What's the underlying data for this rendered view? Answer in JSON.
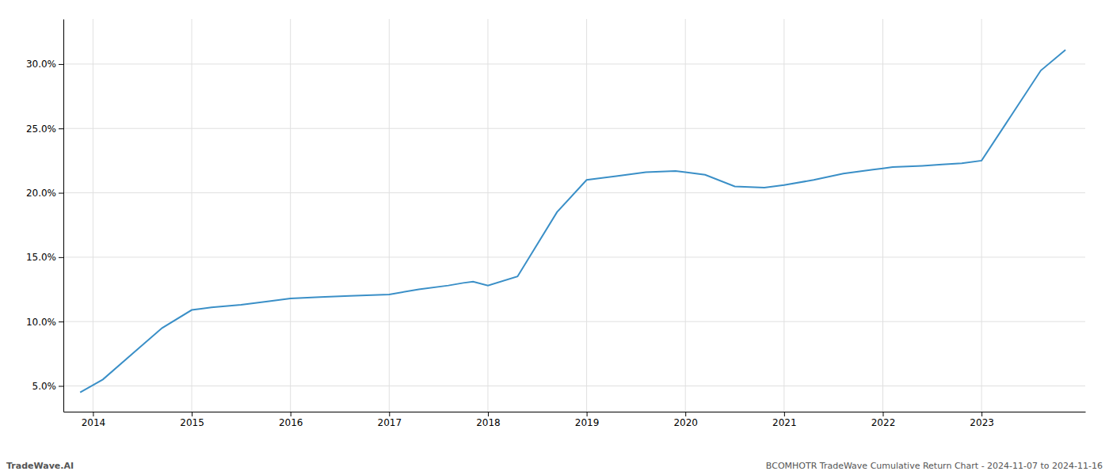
{
  "chart_data": {
    "type": "line",
    "x": [
      2013.87,
      2014.1,
      2014.4,
      2014.7,
      2015.0,
      2015.2,
      2015.5,
      2015.8,
      2016.0,
      2016.3,
      2016.6,
      2017.0,
      2017.3,
      2017.6,
      2017.75,
      2017.85,
      2018.0,
      2018.3,
      2018.7,
      2019.0,
      2019.3,
      2019.6,
      2019.9,
      2020.0,
      2020.2,
      2020.5,
      2020.8,
      2021.0,
      2021.3,
      2021.6,
      2021.9,
      2022.0,
      2022.1,
      2022.4,
      2022.6,
      2022.8,
      2023.0,
      2023.3,
      2023.6,
      2023.85
    ],
    "values": [
      4.5,
      5.5,
      7.5,
      9.5,
      10.9,
      11.1,
      11.3,
      11.6,
      11.8,
      11.9,
      12.0,
      12.1,
      12.5,
      12.8,
      13.0,
      13.1,
      12.8,
      13.5,
      18.5,
      21.0,
      21.3,
      21.6,
      21.7,
      21.6,
      21.4,
      20.5,
      20.4,
      20.6,
      21.0,
      21.5,
      21.8,
      21.9,
      22.0,
      22.1,
      22.2,
      22.3,
      22.5,
      26.0,
      29.5,
      31.1
    ],
    "color": "#3a8fc7",
    "xlim": [
      2013.7,
      2024.05
    ],
    "ylim": [
      3.0,
      33.5
    ],
    "xticks": [
      2014,
      2015,
      2016,
      2017,
      2018,
      2019,
      2020,
      2021,
      2022,
      2023
    ],
    "yticks": [
      {
        "value": 5.0,
        "label": "5.0%"
      },
      {
        "value": 10.0,
        "label": "10.0%"
      },
      {
        "value": 15.0,
        "label": "15.0%"
      },
      {
        "value": 20.0,
        "label": "20.0%"
      },
      {
        "value": 25.0,
        "label": "25.0%"
      },
      {
        "value": 30.0,
        "label": "30.0%"
      }
    ],
    "grid": true,
    "annotations": [
      "TradeWave.AI",
      "BCOMHOTR TradeWave Cumulative Return Chart - 2024-11-07 to 2024-11-16"
    ]
  }
}
